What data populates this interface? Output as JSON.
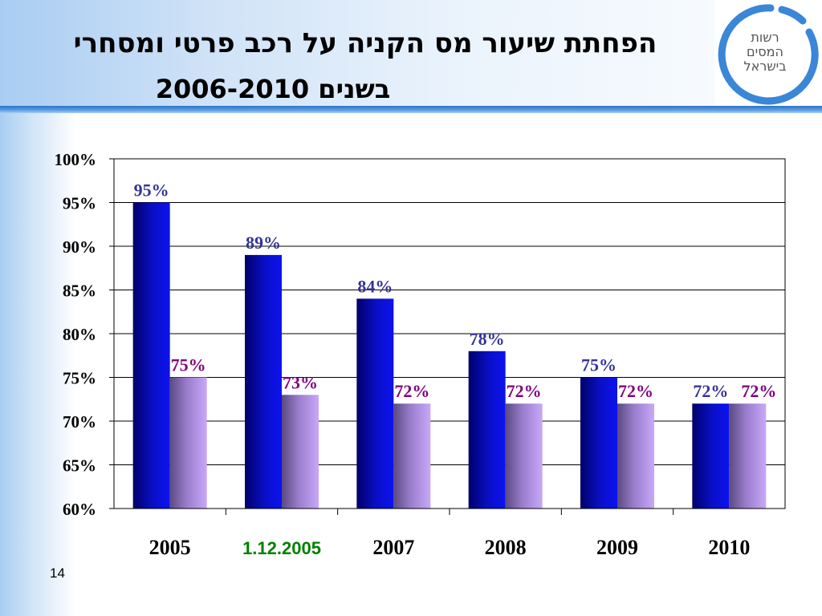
{
  "header": {
    "title_line1": "הפחתת שיעור מס הקניה על רכב פרטי ומסחרי",
    "title_line2": "בשנים 2006-2010"
  },
  "logo": {
    "line1": "רשות",
    "line2": "המסים",
    "line3": "בישראל"
  },
  "page_number": "14",
  "colors": {
    "series_dark": "#0a10c8",
    "series_light": "#c4a2f2",
    "label_dark": "#333399",
    "label_light": "#800080",
    "highlight_category": "#008000",
    "logo_ring": "#3a86d8"
  },
  "chart_data": {
    "type": "bar",
    "categories": [
      "2005",
      "1.12.2005",
      "2007",
      "2008",
      "2009",
      "2010"
    ],
    "highlighted_category": "1.12.2005",
    "series": [
      {
        "values": [
          95,
          89,
          84,
          78,
          75,
          72
        ],
        "labels": [
          "95%",
          "89%",
          "84%",
          "78%",
          "75%",
          "72%"
        ]
      },
      {
        "values": [
          75,
          73,
          72,
          72,
          72,
          72
        ],
        "labels": [
          "75%",
          "73%",
          "72%",
          "72%",
          "72%",
          "72%"
        ]
      }
    ],
    "y_ticks": [
      "60%",
      "65%",
      "70%",
      "75%",
      "80%",
      "85%",
      "90%",
      "95%",
      "100%"
    ],
    "ylim": [
      60,
      100
    ],
    "y_step": 5,
    "grid": true,
    "legend": "none"
  }
}
